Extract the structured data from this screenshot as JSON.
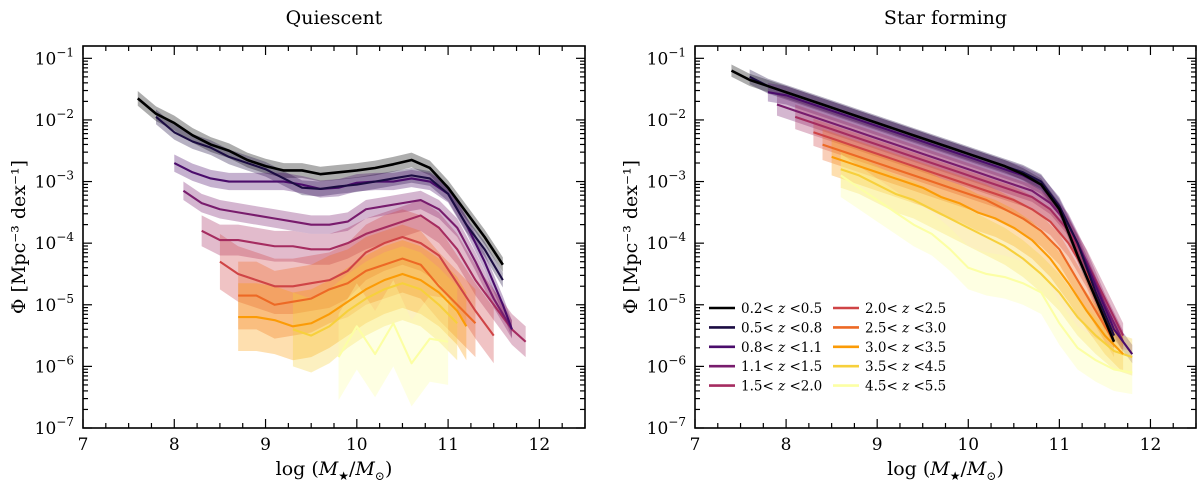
{
  "colors": {
    "z02_05": "#000000",
    "z05_08": "#1b0c42",
    "z08_11": "#4a0c6b",
    "z11_15": "#781c6d",
    "z15_20": "#a52c60",
    "z20_25": "#cf4446",
    "z25_30": "#ed6925",
    "z30_35": "#fb9b06",
    "z35_45": "#f7d03c",
    "z45_55": "#fcffa4"
  },
  "chart_data": [
    {
      "type": "line",
      "panel": "left",
      "title": "Quiescent",
      "xlabel": "log (M★/M⊙)",
      "ylabel": "Φ [Mpc⁻³ dex⁻¹]",
      "xlim": [
        7,
        12.5
      ],
      "ylim_log10": [
        -7,
        -0.8
      ],
      "xticks": [
        "7",
        "8",
        "9",
        "10",
        "11",
        "12"
      ],
      "yticks": [
        "10⁻⁷",
        "10⁻⁶",
        "10⁻⁵",
        "10⁻⁴",
        "10⁻³",
        "10⁻²",
        "10⁻¹"
      ],
      "series": [
        {
          "name": "0.2< z <0.5",
          "color_key": "z02_05",
          "x": [
            7.6,
            7.8,
            8.0,
            8.2,
            8.4,
            8.6,
            8.8,
            9.0,
            9.2,
            9.4,
            9.6,
            9.8,
            10.0,
            10.2,
            10.4,
            10.6,
            10.8,
            11.0,
            11.2,
            11.4,
            11.6
          ],
          "log_phi": [
            -1.65,
            -1.9,
            -2.05,
            -2.25,
            -2.4,
            -2.5,
            -2.65,
            -2.75,
            -2.82,
            -2.82,
            -2.88,
            -2.85,
            -2.82,
            -2.78,
            -2.72,
            -2.65,
            -2.78,
            -3.1,
            -3.5,
            -3.9,
            -4.35
          ],
          "err": 0.12
        },
        {
          "name": "0.5< z <0.8",
          "color_key": "z05_08",
          "x": [
            7.8,
            8.0,
            8.2,
            8.4,
            8.6,
            8.8,
            9.0,
            9.2,
            9.4,
            9.6,
            9.8,
            10.0,
            10.2,
            10.4,
            10.6,
            10.8,
            11.0,
            11.2,
            11.4,
            11.6
          ],
          "log_phi": [
            -1.95,
            -2.2,
            -2.35,
            -2.45,
            -2.6,
            -2.7,
            -2.8,
            -2.95,
            -3.1,
            -3.12,
            -3.08,
            -3.05,
            -3.0,
            -2.95,
            -2.9,
            -2.95,
            -3.2,
            -3.7,
            -4.1,
            -4.6
          ],
          "err": 0.12
        },
        {
          "name": "0.8< z <1.1",
          "color_key": "z08_11",
          "x": [
            8.0,
            8.2,
            8.4,
            8.6,
            8.8,
            9.0,
            9.2,
            9.4,
            9.6,
            9.8,
            10.0,
            10.2,
            10.4,
            10.6,
            10.8,
            11.0,
            11.2,
            11.4,
            11.6,
            11.7
          ],
          "log_phi": [
            -2.7,
            -2.85,
            -2.95,
            -3.0,
            -3.0,
            -3.0,
            -3.0,
            -3.05,
            -3.12,
            -3.1,
            -3.02,
            -3.0,
            -3.0,
            -2.95,
            -3.0,
            -3.2,
            -3.7,
            -4.3,
            -5.0,
            -5.4
          ],
          "err": 0.14
        },
        {
          "name": "1.1< z <1.5",
          "color_key": "z11_15",
          "x": [
            8.1,
            8.3,
            8.5,
            8.7,
            8.9,
            9.1,
            9.3,
            9.5,
            9.7,
            9.9,
            10.1,
            10.3,
            10.5,
            10.7,
            10.9,
            11.1,
            11.3,
            11.5,
            11.7
          ],
          "log_phi": [
            -3.15,
            -3.35,
            -3.45,
            -3.5,
            -3.55,
            -3.6,
            -3.65,
            -3.7,
            -3.7,
            -3.65,
            -3.45,
            -3.4,
            -3.35,
            -3.3,
            -3.45,
            -3.75,
            -4.3,
            -4.9,
            -5.4
          ],
          "err": 0.15
        },
        {
          "name": "1.5< z <2.0",
          "color_key": "z15_20",
          "x": [
            8.3,
            8.5,
            8.7,
            8.9,
            9.1,
            9.3,
            9.5,
            9.7,
            9.9,
            10.1,
            10.3,
            10.5,
            10.7,
            10.9,
            11.1,
            11.3,
            11.5,
            11.7,
            11.85
          ],
          "log_phi": [
            -3.8,
            -3.95,
            -3.95,
            -4.0,
            -4.05,
            -4.05,
            -4.1,
            -4.1,
            -4.0,
            -3.85,
            -3.75,
            -3.65,
            -3.55,
            -3.75,
            -4.1,
            -4.6,
            -5.0,
            -5.4,
            -5.6
          ],
          "err": 0.25
        },
        {
          "name": "2.0< z <2.5",
          "color_key": "z20_25",
          "x": [
            8.5,
            8.7,
            8.9,
            9.1,
            9.3,
            9.5,
            9.7,
            9.9,
            10.1,
            10.3,
            10.5,
            10.7,
            10.9,
            11.1,
            11.3,
            11.5
          ],
          "log_phi": [
            -4.3,
            -4.5,
            -4.6,
            -4.7,
            -4.7,
            -4.65,
            -4.6,
            -4.45,
            -4.15,
            -4.0,
            -3.9,
            -4.0,
            -4.2,
            -4.65,
            -5.1,
            -5.5
          ],
          "err": 0.45
        },
        {
          "name": "2.5< z <3.0",
          "color_key": "z25_30",
          "x": [
            8.7,
            8.9,
            9.1,
            9.3,
            9.5,
            9.7,
            9.9,
            10.1,
            10.3,
            10.5,
            10.7,
            10.9,
            11.1,
            11.3
          ],
          "log_phi": [
            -4.85,
            -4.85,
            -5.0,
            -4.95,
            -4.9,
            -4.75,
            -4.65,
            -4.45,
            -4.35,
            -4.25,
            -4.35,
            -4.7,
            -5.0,
            -5.3
          ],
          "err": 0.55
        },
        {
          "name": "3.0< z <3.5",
          "color_key": "z30_35",
          "x": [
            8.7,
            8.9,
            9.1,
            9.3,
            9.5,
            9.7,
            9.9,
            10.1,
            10.3,
            10.5,
            10.7,
            10.9,
            11.1,
            11.2
          ],
          "log_phi": [
            -5.2,
            -5.2,
            -5.25,
            -5.35,
            -5.3,
            -5.15,
            -4.95,
            -4.75,
            -4.6,
            -4.5,
            -4.6,
            -4.8,
            -5.1,
            -5.35
          ],
          "err": 0.55
        },
        {
          "name": "3.5< z <4.5",
          "color_key": "z35_45",
          "x": [
            9.3,
            9.5,
            9.7,
            9.9,
            10.1,
            10.3,
            10.5,
            10.7,
            10.9,
            11.1
          ],
          "log_phi": [
            -5.4,
            -5.5,
            -5.35,
            -5.1,
            -4.9,
            -4.75,
            -4.65,
            -4.75,
            -5.0,
            -5.3
          ],
          "err": 0.6
        },
        {
          "name": "4.5< z <5.5",
          "color_key": "z45_55",
          "x": [
            9.8,
            10.0,
            10.2,
            10.4,
            10.6,
            10.8,
            11.0
          ],
          "log_phi": [
            -5.85,
            -5.35,
            -5.8,
            -5.3,
            -5.95,
            -5.55,
            -5.6
          ],
          "err": 0.7
        }
      ]
    },
    {
      "type": "line",
      "panel": "right",
      "title": "Star forming",
      "xlabel": "log (M★/M⊙)",
      "ylabel": "Φ [Mpc⁻³ dex⁻¹]",
      "xlim": [
        7,
        12.5
      ],
      "ylim_log10": [
        -7,
        -0.8
      ],
      "xticks": [
        "7",
        "8",
        "9",
        "10",
        "11",
        "12"
      ],
      "yticks": [
        "10⁻⁷",
        "10⁻⁶",
        "10⁻⁵",
        "10⁻⁴",
        "10⁻³",
        "10⁻²",
        "10⁻¹"
      ],
      "legend_location": "lower-left",
      "series": [
        {
          "name": "0.2< z <0.5",
          "color_key": "z02_05",
          "x": [
            7.4,
            7.6,
            7.8,
            8.0,
            8.2,
            8.4,
            8.6,
            8.8,
            9.0,
            9.2,
            9.4,
            9.6,
            9.8,
            10.0,
            10.2,
            10.4,
            10.6,
            10.8,
            11.0,
            11.2,
            11.4,
            11.6
          ],
          "log_phi": [
            -1.2,
            -1.35,
            -1.45,
            -1.55,
            -1.65,
            -1.75,
            -1.85,
            -1.95,
            -2.05,
            -2.15,
            -2.25,
            -2.35,
            -2.45,
            -2.55,
            -2.65,
            -2.75,
            -2.88,
            -3.05,
            -3.45,
            -4.2,
            -4.9,
            -5.6
          ],
          "err": 0.1
        },
        {
          "name": "0.5< z <0.8",
          "color_key": "z05_08",
          "x": [
            7.6,
            7.8,
            8.0,
            8.2,
            8.4,
            8.6,
            8.8,
            9.0,
            9.2,
            9.4,
            9.6,
            9.8,
            10.0,
            10.2,
            10.4,
            10.6,
            10.8,
            11.0,
            11.2,
            11.4,
            11.6
          ],
          "log_phi": [
            -1.3,
            -1.45,
            -1.55,
            -1.65,
            -1.75,
            -1.85,
            -1.95,
            -2.05,
            -2.15,
            -2.25,
            -2.35,
            -2.45,
            -2.55,
            -2.65,
            -2.75,
            -2.85,
            -3.0,
            -3.4,
            -4.0,
            -4.8,
            -5.5
          ],
          "err": 0.12
        },
        {
          "name": "0.8< z <1.1",
          "color_key": "z08_11",
          "x": [
            7.8,
            8.0,
            8.2,
            8.4,
            8.6,
            8.8,
            9.0,
            9.2,
            9.4,
            9.6,
            9.8,
            10.0,
            10.2,
            10.4,
            10.6,
            10.8,
            11.0,
            11.2,
            11.4,
            11.6,
            11.8
          ],
          "log_phi": [
            -1.55,
            -1.6,
            -1.7,
            -1.8,
            -1.9,
            -2.0,
            -2.1,
            -2.2,
            -2.3,
            -2.4,
            -2.5,
            -2.6,
            -2.7,
            -2.8,
            -2.9,
            -3.05,
            -3.4,
            -4.0,
            -4.7,
            -5.4,
            -5.8
          ],
          "err": 0.15
        },
        {
          "name": "1.1< z <1.5",
          "color_key": "z11_15",
          "x": [
            7.9,
            8.1,
            8.3,
            8.5,
            8.7,
            8.9,
            9.1,
            9.3,
            9.5,
            9.7,
            9.9,
            10.1,
            10.3,
            10.5,
            10.7,
            10.9,
            11.1,
            11.3,
            11.5,
            11.7
          ],
          "log_phi": [
            -1.75,
            -1.85,
            -1.95,
            -2.05,
            -2.15,
            -2.25,
            -2.35,
            -2.45,
            -2.55,
            -2.65,
            -2.75,
            -2.85,
            -2.95,
            -3.05,
            -3.15,
            -3.35,
            -3.7,
            -4.3,
            -5.0,
            -5.6
          ],
          "err": 0.18
        },
        {
          "name": "1.5< z <2.0",
          "color_key": "z15_20",
          "x": [
            8.1,
            8.3,
            8.5,
            8.7,
            8.9,
            9.1,
            9.3,
            9.5,
            9.7,
            9.9,
            10.1,
            10.3,
            10.5,
            10.7,
            10.9,
            11.1,
            11.3,
            11.5,
            11.7
          ],
          "log_phi": [
            -1.95,
            -2.05,
            -2.15,
            -2.25,
            -2.35,
            -2.45,
            -2.55,
            -2.65,
            -2.75,
            -2.85,
            -2.95,
            -3.05,
            -3.15,
            -3.25,
            -3.45,
            -3.8,
            -4.3,
            -4.9,
            -5.5
          ],
          "err": 0.2
        },
        {
          "name": "2.0< z <2.5",
          "color_key": "z20_25",
          "x": [
            8.3,
            8.5,
            8.7,
            8.9,
            9.1,
            9.3,
            9.5,
            9.7,
            9.9,
            10.1,
            10.3,
            10.5,
            10.7,
            10.9,
            11.1,
            11.3,
            11.5
          ],
          "log_phi": [
            -2.2,
            -2.3,
            -2.4,
            -2.5,
            -2.6,
            -2.7,
            -2.8,
            -2.9,
            -3.0,
            -3.1,
            -3.2,
            -3.3,
            -3.45,
            -3.65,
            -4.0,
            -4.5,
            -5.2
          ],
          "err": 0.22
        },
        {
          "name": "2.5< z <3.0",
          "color_key": "z25_30",
          "x": [
            8.4,
            8.6,
            8.8,
            9.0,
            9.2,
            9.4,
            9.6,
            9.8,
            10.0,
            10.2,
            10.4,
            10.6,
            10.8,
            11.0,
            11.2,
            11.4,
            11.6
          ],
          "log_phi": [
            -2.4,
            -2.5,
            -2.6,
            -2.7,
            -2.8,
            -2.9,
            -3.0,
            -3.1,
            -3.2,
            -3.3,
            -3.45,
            -3.6,
            -3.8,
            -4.1,
            -4.6,
            -5.1,
            -5.6
          ],
          "err": 0.25
        },
        {
          "name": "3.0< z <3.5",
          "color_key": "z30_35",
          "x": [
            8.5,
            8.7,
            8.9,
            9.1,
            9.3,
            9.5,
            9.7,
            9.9,
            10.1,
            10.3,
            10.5,
            10.7,
            10.9,
            11.1,
            11.3,
            11.5,
            11.7
          ],
          "log_phi": [
            -2.6,
            -2.7,
            -2.8,
            -2.9,
            -3.0,
            -3.1,
            -3.25,
            -3.35,
            -3.5,
            -3.6,
            -3.75,
            -3.95,
            -4.25,
            -4.65,
            -5.1,
            -5.5,
            -5.8
          ],
          "err": 0.3
        },
        {
          "name": "3.5< z <4.5",
          "color_key": "z35_45",
          "x": [
            8.6,
            8.8,
            9.0,
            9.2,
            9.4,
            9.6,
            9.8,
            10.0,
            10.2,
            10.4,
            10.6,
            10.8,
            11.0,
            11.2,
            11.4,
            11.6,
            11.8
          ],
          "log_phi": [
            -2.8,
            -2.9,
            -3.05,
            -3.2,
            -3.3,
            -3.45,
            -3.6,
            -3.75,
            -3.9,
            -4.05,
            -4.25,
            -4.5,
            -4.8,
            -5.2,
            -5.5,
            -5.75,
            -5.85
          ],
          "err": 0.3
        },
        {
          "name": "4.5< z <5.5",
          "color_key": "z45_55",
          "x": [
            8.6,
            8.8,
            9.0,
            9.2,
            9.4,
            9.6,
            9.8,
            10.0,
            10.2,
            10.4,
            10.6,
            10.8,
            11.0,
            11.2,
            11.4,
            11.6,
            11.8
          ],
          "log_phi": [
            -2.9,
            -3.1,
            -3.3,
            -3.5,
            -3.7,
            -3.85,
            -4.1,
            -4.4,
            -4.5,
            -4.55,
            -4.65,
            -4.8,
            -5.3,
            -5.7,
            -5.9,
            -6.05,
            -6.1
          ],
          "err": 0.35
        }
      ]
    }
  ]
}
